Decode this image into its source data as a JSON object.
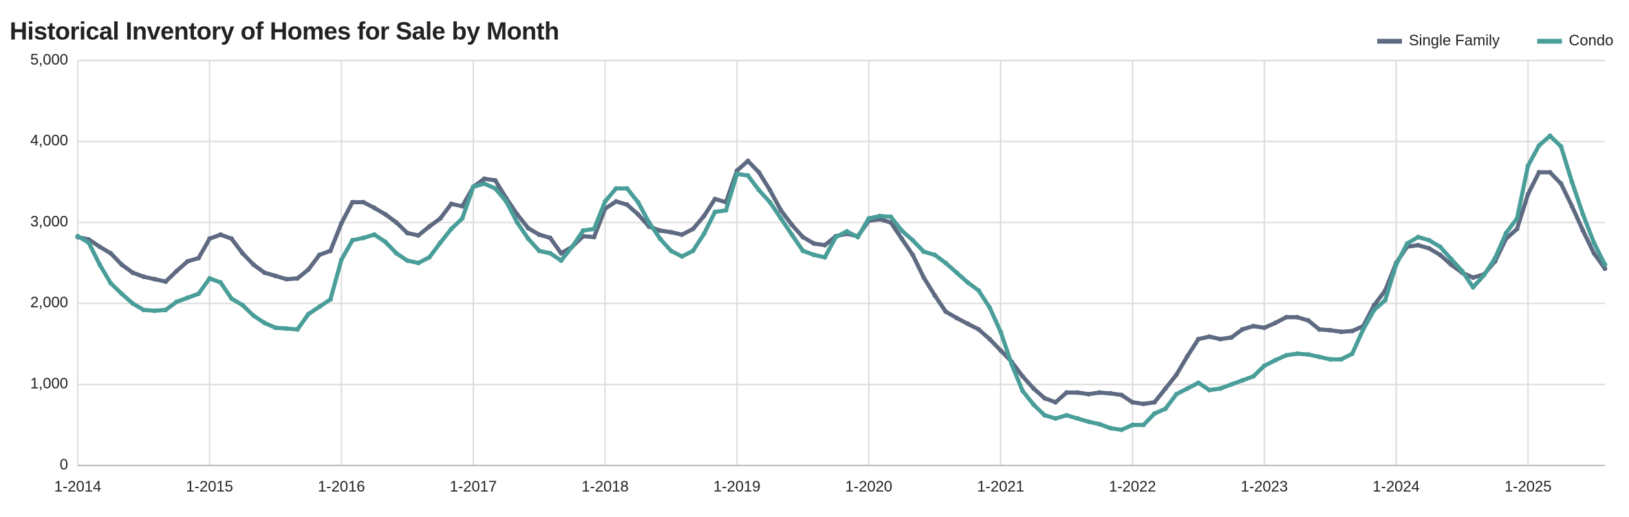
{
  "chart_data": {
    "type": "line",
    "title": "Historical Inventory of Homes for Sale by Month",
    "categories": [
      "1-2014",
      null,
      null,
      null,
      null,
      null,
      null,
      null,
      null,
      null,
      null,
      null,
      "1-2015",
      null,
      null,
      null,
      null,
      null,
      null,
      null,
      null,
      null,
      null,
      null,
      "1-2016",
      null,
      null,
      null,
      null,
      null,
      null,
      null,
      null,
      null,
      null,
      null,
      "1-2017",
      null,
      null,
      null,
      null,
      null,
      null,
      null,
      null,
      null,
      null,
      null,
      "1-2018",
      null,
      null,
      null,
      null,
      null,
      null,
      null,
      null,
      null,
      null,
      null,
      "1-2019",
      null,
      null,
      null,
      null,
      null,
      null,
      null,
      null,
      null,
      null,
      null,
      "1-2020",
      null,
      null,
      null,
      null,
      null,
      null,
      null,
      null,
      null,
      null,
      null,
      "1-2021",
      null,
      null,
      null,
      null,
      null,
      null,
      null,
      null,
      null,
      null,
      null,
      "1-2022",
      null,
      null,
      null,
      null,
      null,
      null,
      null,
      null,
      null,
      null,
      null,
      "1-2023",
      null,
      null,
      null,
      null,
      null,
      null,
      null,
      null,
      null,
      null,
      null,
      "1-2024",
      null,
      null,
      null,
      null,
      null,
      null,
      null,
      null,
      null,
      null,
      null,
      "1-2025",
      null,
      null,
      null,
      null,
      null,
      null,
      null
    ],
    "series": [
      {
        "name": "Single Family",
        "color": "#5e6a81",
        "values": [
          2820,
          2790,
          2700,
          2620,
          2480,
          2380,
          2330,
          2300,
          2270,
          2400,
          2520,
          2560,
          2800,
          2850,
          2800,
          2620,
          2480,
          2380,
          2340,
          2300,
          2310,
          2420,
          2600,
          2650,
          2990,
          3250,
          3250,
          3180,
          3100,
          3000,
          2870,
          2840,
          2950,
          3050,
          3230,
          3200,
          3440,
          3540,
          3520,
          3300,
          3100,
          2930,
          2850,
          2810,
          2620,
          2700,
          2830,
          2820,
          3170,
          3260,
          3220,
          3100,
          2950,
          2900,
          2880,
          2850,
          2920,
          3080,
          3290,
          3250,
          3640,
          3760,
          3620,
          3400,
          3150,
          2970,
          2820,
          2740,
          2720,
          2830,
          2860,
          2830,
          3020,
          3040,
          3000,
          2800,
          2600,
          2320,
          2100,
          1900,
          1820,
          1750,
          1680,
          1560,
          1420,
          1280,
          1100,
          950,
          830,
          780,
          900,
          900,
          880,
          900,
          890,
          870,
          780,
          760,
          780,
          950,
          1120,
          1350,
          1560,
          1590,
          1560,
          1580,
          1680,
          1720,
          1700,
          1760,
          1830,
          1830,
          1790,
          1680,
          1670,
          1650,
          1660,
          1720,
          1980,
          2160,
          2500,
          2700,
          2720,
          2680,
          2600,
          2480,
          2380,
          2320,
          2360,
          2520,
          2800,
          2920,
          3350,
          3620,
          3620,
          3480,
          3200,
          2900,
          2620,
          2430
        ]
      },
      {
        "name": "Condo",
        "color": "#4a9e9a",
        "values": [
          2830,
          2750,
          2480,
          2250,
          2120,
          2000,
          1920,
          1910,
          1920,
          2020,
          2070,
          2120,
          2310,
          2260,
          2060,
          1980,
          1850,
          1760,
          1700,
          1690,
          1680,
          1870,
          1960,
          2050,
          2540,
          2780,
          2810,
          2850,
          2760,
          2620,
          2530,
          2500,
          2570,
          2750,
          2920,
          3050,
          3440,
          3480,
          3420,
          3260,
          3000,
          2800,
          2650,
          2620,
          2530,
          2700,
          2900,
          2920,
          3260,
          3420,
          3420,
          3250,
          3000,
          2800,
          2650,
          2580,
          2650,
          2860,
          3130,
          3150,
          3600,
          3580,
          3400,
          3250,
          3050,
          2850,
          2650,
          2600,
          2570,
          2820,
          2890,
          2820,
          3050,
          3080,
          3070,
          2900,
          2780,
          2640,
          2600,
          2500,
          2380,
          2260,
          2160,
          1950,
          1650,
          1250,
          920,
          750,
          620,
          580,
          620,
          580,
          540,
          510,
          460,
          440,
          500,
          500,
          640,
          700,
          880,
          950,
          1020,
          930,
          950,
          1000,
          1050,
          1100,
          1230,
          1300,
          1360,
          1380,
          1370,
          1340,
          1310,
          1310,
          1380,
          1680,
          1920,
          2040,
          2480,
          2740,
          2820,
          2780,
          2700,
          2550,
          2400,
          2200,
          2350,
          2560,
          2870,
          3050,
          3700,
          3950,
          4070,
          3940,
          3500,
          3100,
          2750,
          2480
        ]
      }
    ],
    "ylim": [
      0,
      5000
    ],
    "yticks": [
      0,
      {
        "value": 1000,
        "label": "1,000"
      },
      {
        "value": 2000,
        "label": "2,000"
      },
      {
        "value": 3000,
        "label": "3,000"
      },
      {
        "value": 4000,
        "label": "4,000"
      },
      {
        "value": 5000,
        "label": "5,000"
      }
    ],
    "grid": true,
    "legend": "top-right"
  }
}
